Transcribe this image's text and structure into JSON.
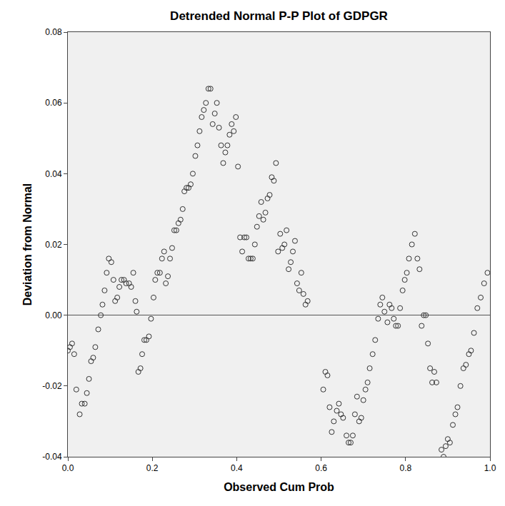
{
  "chart_data": {
    "type": "scatter",
    "title": "Detrended Normal P-P Plot of GDPGR",
    "x_label": "Observed Cum Prob",
    "y_label": "Deviation from Normal",
    "color": "#333333",
    "marker": "open circle",
    "grid": false,
    "xlim": [
      0,
      1
    ],
    "ylim": [
      -0.04,
      0.08
    ],
    "xticks": [
      {
        "value": 0,
        "label": "0.0"
      },
      0.2,
      0.4,
      0.6,
      0.8,
      {
        "value": 1,
        "label": "1.0"
      }
    ],
    "yticks": [
      -0.04,
      -0.02,
      {
        "value": 0,
        "label": "0.00"
      },
      0.02,
      0.04,
      0.06,
      0.08
    ],
    "x": [
      0.0,
      0.005,
      0.01,
      0.015,
      0.02,
      0.028,
      0.033,
      0.04,
      0.045,
      0.05,
      0.055,
      0.06,
      0.065,
      0.072,
      0.078,
      0.082,
      0.087,
      0.092,
      0.097,
      0.103,
      0.108,
      0.112,
      0.117,
      0.122,
      0.127,
      0.133,
      0.138,
      0.145,
      0.15,
      0.155,
      0.16,
      0.163,
      0.167,
      0.172,
      0.176,
      0.181,
      0.186,
      0.192,
      0.197,
      0.203,
      0.207,
      0.212,
      0.218,
      0.223,
      0.228,
      0.232,
      0.237,
      0.242,
      0.247,
      0.252,
      0.257,
      0.262,
      0.267,
      0.272,
      0.276,
      0.281,
      0.286,
      0.291,
      0.296,
      0.302,
      0.307,
      0.312,
      0.317,
      0.322,
      0.327,
      0.333,
      0.338,
      0.343,
      0.348,
      0.353,
      0.358,
      0.363,
      0.368,
      0.373,
      0.378,
      0.383,
      0.388,
      0.393,
      0.398,
      0.403,
      0.408,
      0.413,
      0.418,
      0.423,
      0.428,
      0.433,
      0.438,
      0.443,
      0.448,
      0.453,
      0.458,
      0.463,
      0.468,
      0.473,
      0.478,
      0.483,
      0.488,
      0.493,
      0.498,
      0.503,
      0.508,
      0.513,
      0.518,
      0.523,
      0.528,
      0.533,
      0.538,
      0.543,
      0.548,
      0.553,
      0.558,
      0.563,
      0.568,
      0.605,
      0.61,
      0.615,
      0.62,
      0.625,
      0.63,
      0.637,
      0.642,
      0.647,
      0.652,
      0.66,
      0.665,
      0.67,
      0.675,
      0.68,
      0.685,
      0.69,
      0.695,
      0.7,
      0.705,
      0.71,
      0.715,
      0.722,
      0.728,
      0.735,
      0.74,
      0.745,
      0.75,
      0.757,
      0.762,
      0.767,
      0.772,
      0.777,
      0.782,
      0.787,
      0.793,
      0.798,
      0.803,
      0.808,
      0.815,
      0.822,
      0.828,
      0.833,
      0.838,
      0.843,
      0.848,
      0.853,
      0.858,
      0.863,
      0.868,
      0.873,
      0.885,
      0.89,
      0.895,
      0.9,
      0.905,
      0.912,
      0.918,
      0.923,
      0.93,
      0.937,
      0.943,
      0.95,
      0.955,
      0.962,
      0.97,
      0.978,
      0.986,
      0.994
    ],
    "values": [
      -0.01,
      -0.009,
      -0.008,
      -0.011,
      -0.021,
      -0.028,
      -0.025,
      -0.025,
      -0.022,
      -0.018,
      -0.013,
      -0.012,
      -0.009,
      -0.004,
      0.0,
      0.003,
      0.007,
      0.012,
      0.016,
      0.015,
      0.01,
      0.004,
      0.005,
      0.008,
      0.01,
      0.01,
      0.009,
      0.009,
      0.008,
      0.012,
      0.004,
      0.001,
      -0.016,
      -0.015,
      -0.011,
      -0.007,
      -0.007,
      -0.006,
      -0.001,
      0.005,
      0.01,
      0.012,
      0.012,
      0.016,
      0.018,
      0.009,
      0.011,
      0.016,
      0.019,
      0.024,
      0.024,
      0.026,
      0.027,
      0.03,
      0.035,
      0.036,
      0.036,
      0.037,
      0.04,
      0.045,
      0.048,
      0.052,
      0.056,
      0.058,
      0.06,
      0.064,
      0.064,
      0.054,
      0.057,
      0.06,
      0.053,
      0.048,
      0.043,
      0.046,
      0.048,
      0.051,
      0.054,
      0.052,
      0.056,
      0.042,
      0.022,
      0.018,
      0.022,
      0.022,
      0.016,
      0.016,
      0.016,
      0.02,
      0.025,
      0.028,
      0.032,
      0.027,
      0.029,
      0.033,
      0.034,
      0.039,
      0.038,
      0.043,
      0.018,
      0.023,
      0.019,
      0.02,
      0.024,
      0.013,
      0.015,
      0.018,
      0.021,
      0.009,
      0.007,
      0.012,
      0.006,
      0.003,
      0.004,
      -0.021,
      -0.016,
      -0.017,
      -0.026,
      -0.033,
      -0.03,
      -0.027,
      -0.025,
      -0.028,
      -0.029,
      -0.034,
      -0.036,
      -0.036,
      -0.034,
      -0.028,
      -0.023,
      -0.03,
      -0.029,
      -0.024,
      -0.021,
      -0.019,
      -0.015,
      -0.011,
      -0.007,
      -0.001,
      0.003,
      0.005,
      0.001,
      -0.002,
      0.003,
      0.002,
      -0.001,
      -0.003,
      -0.003,
      0.002,
      0.007,
      0.01,
      0.012,
      0.016,
      0.02,
      0.023,
      0.016,
      0.013,
      -0.003,
      0.0,
      0.0,
      -0.008,
      -0.015,
      -0.019,
      -0.016,
      -0.019,
      -0.038,
      -0.04,
      -0.037,
      -0.035,
      -0.036,
      -0.031,
      -0.028,
      -0.026,
      -0.02,
      -0.015,
      -0.014,
      -0.011,
      -0.01,
      -0.005,
      0.002,
      0.005,
      0.009,
      0.012
    ]
  }
}
